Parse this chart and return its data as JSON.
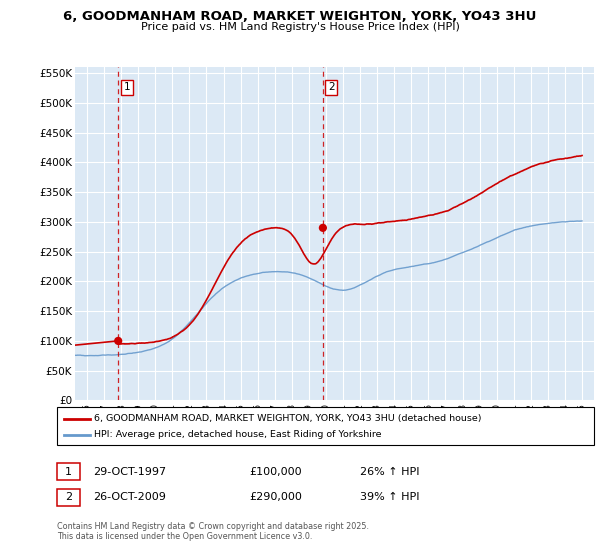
{
  "title": "6, GOODMANHAM ROAD, MARKET WEIGHTON, YORK, YO43 3HU",
  "subtitle": "Price paid vs. HM Land Registry's House Price Index (HPI)",
  "legend_line1": "6, GOODMANHAM ROAD, MARKET WEIGHTON, YORK, YO43 3HU (detached house)",
  "legend_line2": "HPI: Average price, detached house, East Riding of Yorkshire",
  "annotation1_label": "1",
  "annotation1_date": "29-OCT-1997",
  "annotation1_price": "£100,000",
  "annotation1_hpi": "26% ↑ HPI",
  "annotation2_label": "2",
  "annotation2_date": "26-OCT-2009",
  "annotation2_price": "£290,000",
  "annotation2_hpi": "39% ↑ HPI",
  "footer": "Contains HM Land Registry data © Crown copyright and database right 2025.\nThis data is licensed under the Open Government Licence v3.0.",
  "red_color": "#cc0000",
  "blue_color": "#6699cc",
  "plot_bg_color": "#dce9f5",
  "background_color": "#ffffff",
  "grid_color": "#ffffff",
  "ylim": [
    0,
    560000
  ],
  "yticks": [
    0,
    50000,
    100000,
    150000,
    200000,
    250000,
    300000,
    350000,
    400000,
    450000,
    500000,
    550000
  ],
  "xlim_start": 1995.3,
  "xlim_end": 2025.7,
  "sale1_x": 1997.83,
  "sale1_y": 100000,
  "sale2_x": 2009.82,
  "sale2_y": 290000,
  "vline1_x": 1997.83,
  "vline2_x": 2009.82
}
